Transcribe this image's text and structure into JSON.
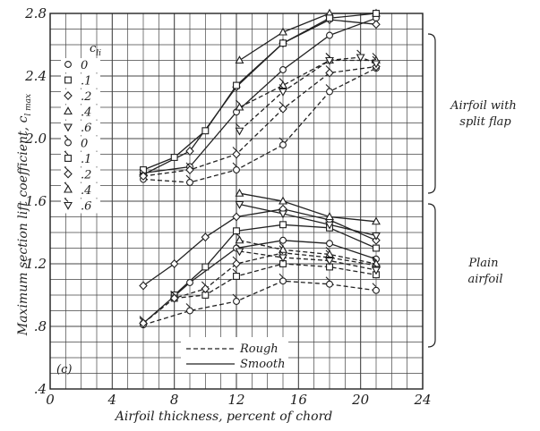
{
  "chart_data": {
    "type": "line",
    "panel_label": "(c)",
    "xlabel": "Airfoil thickness, percent of chord",
    "ylabel": "Maximum section lift coefficient, c",
    "ylabel_subscript": "l max",
    "xlim": [
      0,
      24
    ],
    "ylim": [
      0.4,
      2.8
    ],
    "x_ticks": [
      "0",
      "4",
      "8",
      "12",
      "16",
      "20",
      "24"
    ],
    "y_ticks": [
      ".4",
      ".8",
      "1.2",
      "1.6",
      "2.0",
      "2.4",
      "2.8"
    ],
    "grid": true,
    "legend_header": "c",
    "legend_header_sub": "li",
    "legend_cli": [
      "0",
      ".1",
      ".2",
      ".4",
      ".6",
      "0",
      ".1",
      ".2",
      ".4",
      ".6"
    ],
    "legend_symbols": [
      "circle",
      "square",
      "diamond",
      "triangle",
      "triangle-down",
      "circle-flag",
      "square-flag",
      "diamond-flag",
      "triangle-flag",
      "triangle-down-flag"
    ],
    "line_legend": [
      {
        "label": "Rough",
        "style": "dashed"
      },
      {
        "label": "Smooth",
        "style": "solid"
      }
    ],
    "group_labels": [
      {
        "text": [
          "Airfoil with",
          "split flap"
        ]
      },
      {
        "text": [
          "Plain",
          "airfoil"
        ]
      }
    ],
    "series": [
      {
        "group": "split flap",
        "cli": "0",
        "condition": "smooth",
        "style": "solid",
        "symbol": "circle",
        "x": [
          6,
          9,
          12,
          15,
          18,
          21
        ],
        "y": [
          1.78,
          1.82,
          2.17,
          2.44,
          2.66,
          2.77
        ]
      },
      {
        "group": "split flap",
        "cli": ".2",
        "condition": "smooth",
        "style": "solid",
        "symbol": "diamond",
        "x": [
          6,
          9,
          12,
          15,
          18,
          21
        ],
        "y": [
          1.77,
          1.92,
          2.33,
          2.61,
          2.76,
          2.73
        ]
      },
      {
        "group": "split flap",
        "cli": ".4",
        "condition": "smooth",
        "style": "solid",
        "symbol": "triangle",
        "x": [
          12.2,
          15,
          18,
          21
        ],
        "y": [
          2.5,
          2.68,
          2.8,
          2.8
        ]
      },
      {
        "group": "split flap",
        "cli": ".1",
        "condition": "smooth",
        "style": "solid",
        "symbol": "square",
        "x": [
          6,
          8,
          10,
          12,
          15,
          18,
          21
        ],
        "y": [
          1.8,
          1.88,
          2.05,
          2.34,
          2.61,
          2.77,
          2.8
        ]
      },
      {
        "group": "split flap",
        "cli": "0",
        "condition": "rough",
        "style": "dashed",
        "symbol": "circle-flag",
        "x": [
          6,
          9,
          12,
          15,
          18,
          21
        ],
        "y": [
          1.74,
          1.72,
          1.8,
          1.96,
          2.3,
          2.45
        ]
      },
      {
        "group": "split flap",
        "cli": ".2",
        "condition": "rough",
        "style": "dashed",
        "symbol": "diamond-flag",
        "x": [
          6,
          9,
          12,
          15,
          18,
          21
        ],
        "y": [
          1.76,
          1.8,
          1.9,
          2.19,
          2.42,
          2.46
        ]
      },
      {
        "group": "split flap",
        "cli": ".4",
        "condition": "rough",
        "style": "dashed",
        "symbol": "triangle-flag",
        "x": [
          12.2,
          15,
          18,
          21
        ],
        "y": [
          2.2,
          2.34,
          2.5,
          2.5
        ]
      },
      {
        "group": "split flap",
        "cli": ".6",
        "condition": "rough",
        "style": "dashed",
        "symbol": "triangle-down-flag",
        "x": [
          12.2,
          15,
          18,
          20,
          21
        ],
        "y": [
          2.05,
          2.3,
          2.5,
          2.52,
          2.48
        ]
      },
      {
        "group": "plain",
        "cli": ".2",
        "condition": "smooth",
        "style": "solid",
        "symbol": "diamond",
        "x": [
          6,
          8,
          10,
          12,
          15,
          18,
          21
        ],
        "y": [
          1.06,
          1.2,
          1.37,
          1.5,
          1.55,
          1.48,
          1.35
        ]
      },
      {
        "group": "plain",
        "cli": ".4",
        "condition": "smooth",
        "style": "solid",
        "symbol": "triangle",
        "x": [
          12.2,
          15,
          18,
          21
        ],
        "y": [
          1.65,
          1.6,
          1.5,
          1.47
        ]
      },
      {
        "group": "plain",
        "cli": "0",
        "condition": "smooth",
        "style": "solid",
        "symbol": "circle",
        "x": [
          6,
          9,
          12,
          15,
          18,
          21
        ],
        "y": [
          0.82,
          1.08,
          1.3,
          1.35,
          1.33,
          1.23
        ]
      },
      {
        "group": "plain",
        "cli": ".1",
        "condition": "smooth",
        "style": "solid",
        "symbol": "square",
        "x": [
          8,
          10,
          12,
          15,
          18,
          21
        ],
        "y": [
          1.0,
          1.18,
          1.41,
          1.45,
          1.43,
          1.3
        ]
      },
      {
        "group": "plain",
        "cli": ".6",
        "condition": "smooth",
        "style": "solid",
        "symbol": "triangle-down",
        "x": [
          12.2,
          15,
          18,
          21
        ],
        "y": [
          1.58,
          1.52,
          1.45,
          1.38
        ]
      },
      {
        "group": "plain",
        "cli": "0",
        "condition": "rough",
        "style": "dashed",
        "symbol": "circle-flag",
        "x": [
          6,
          9,
          12,
          15,
          18,
          21
        ],
        "y": [
          0.81,
          0.9,
          0.96,
          1.09,
          1.07,
          1.03
        ]
      },
      {
        "group": "plain",
        "cli": ".1",
        "condition": "rough",
        "style": "dashed",
        "symbol": "square-flag",
        "x": [
          8,
          10,
          12,
          15,
          18,
          21
        ],
        "y": [
          0.98,
          1.0,
          1.12,
          1.2,
          1.18,
          1.13
        ]
      },
      {
        "group": "plain",
        "cli": ".2",
        "condition": "rough",
        "style": "dashed",
        "symbol": "diamond-flag",
        "x": [
          6,
          8,
          10,
          12,
          15,
          18,
          21
        ],
        "y": [
          0.82,
          0.98,
          1.04,
          1.2,
          1.27,
          1.24,
          1.19
        ]
      },
      {
        "group": "plain",
        "cli": ".4",
        "condition": "rough",
        "style": "dashed",
        "symbol": "triangle-flag",
        "x": [
          12.2,
          15,
          18,
          21
        ],
        "y": [
          1.35,
          1.29,
          1.26,
          1.2
        ]
      },
      {
        "group": "plain",
        "cli": ".6",
        "condition": "rough",
        "style": "dashed",
        "symbol": "triangle-down-flag",
        "x": [
          12.2,
          15,
          18,
          21
        ],
        "y": [
          1.28,
          1.24,
          1.22,
          1.16
        ]
      }
    ]
  }
}
